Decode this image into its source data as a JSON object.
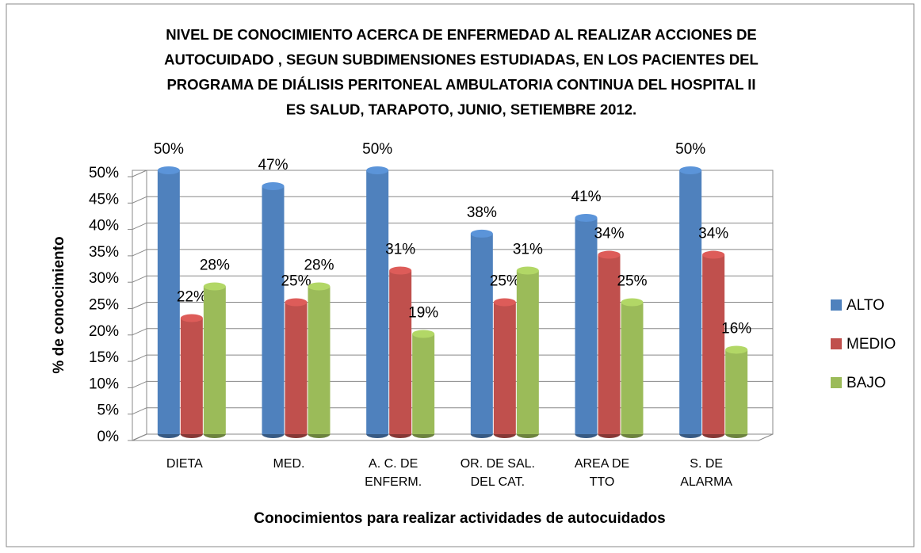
{
  "chart_data": {
    "type": "bar3d",
    "title": [
      "NIVEL DE CONOCIMIENTO  ACERCA DE ENFERMEDAD AL  REALIZAR  ACCIONES DE",
      "AUTOCUIDADO , SEGUN SUBDIMENSIONES  ESTUDIADAS,  EN LOS PACIENTES  DEL",
      "PROGRAMA DE DIÁLISIS  PERITONEAL  AMBULATORIA CONTINUA DEL HOSPITAL II",
      "ES SALUD, TARAPOTO, JUNIO, SETIEMBRE 2012."
    ],
    "x_label": "Conocimientos para realizar actividades de autocuidados",
    "y_label": "% de conocimiento",
    "categories": [
      [
        "DIETA"
      ],
      [
        "MED."
      ],
      [
        "A. C. DE",
        "ENFERM."
      ],
      [
        "OR. DE SAL.",
        "DEL CAT."
      ],
      [
        "AREA DE",
        "TTO"
      ],
      [
        "S. DE",
        "ALARMA"
      ]
    ],
    "series": [
      {
        "name": "ALTO",
        "color": "#4f81bd",
        "values": [
          50,
          47,
          50,
          38,
          41,
          50
        ],
        "value_labels": [
          "50%",
          "47%",
          "50%",
          "38%",
          "41%",
          "50%"
        ]
      },
      {
        "name": "MEDIO",
        "color": "#c0504d",
        "values": [
          22,
          25,
          31,
          25,
          34,
          34
        ],
        "value_labels": [
          "22%",
          "25%",
          "31%",
          "25%",
          "34%",
          "34%"
        ]
      },
      {
        "name": "BAJO",
        "color": "#9bbb59",
        "values": [
          28,
          28,
          19,
          31,
          25,
          16
        ],
        "value_labels": [
          "28%",
          "28%",
          "19%",
          "31%",
          "25%",
          "16%"
        ]
      }
    ],
    "ylim": [
      0,
      50
    ],
    "yticks": [
      {
        "value": 0,
        "label": "0%"
      },
      {
        "value": 5,
        "label": "5%"
      },
      {
        "value": 10,
        "label": "10%"
      },
      {
        "value": 15,
        "label": "15%"
      },
      {
        "value": 20,
        "label": "20%"
      },
      {
        "value": 25,
        "label": "25%"
      },
      {
        "value": 30,
        "label": "30%"
      },
      {
        "value": 35,
        "label": "35%"
      },
      {
        "value": 40,
        "label": "40%"
      },
      {
        "value": 45,
        "label": "45%"
      },
      {
        "value": 50,
        "label": "50%"
      }
    ],
    "grid": true,
    "legend": "right"
  }
}
